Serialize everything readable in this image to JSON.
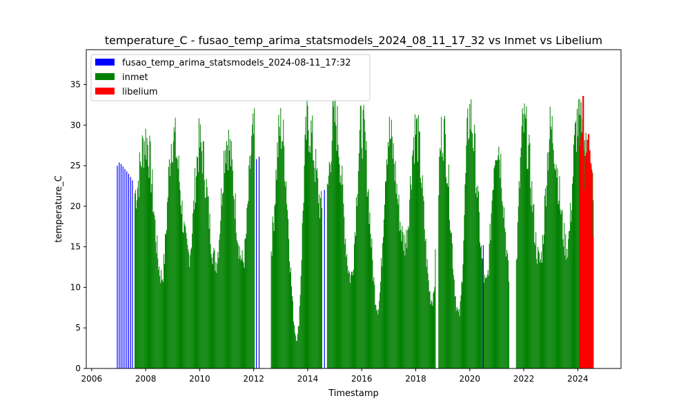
{
  "chart_data": {
    "type": "bar",
    "title": "temperature_C - fusao_temp_arima_statsmodels_2024_08_11_17_32 vs Inmet vs Libelium",
    "xlabel": "Timestamp",
    "ylabel": "temperature_C",
    "xlim": [
      2005.8,
      2025.6
    ],
    "ylim": [
      0,
      39.3
    ],
    "x_ticks": [
      2006,
      2008,
      2010,
      2012,
      2014,
      2016,
      2018,
      2020,
      2022,
      2024
    ],
    "y_ticks": [
      0,
      5,
      10,
      15,
      20,
      25,
      30,
      35
    ],
    "grid": false,
    "legend_position": "top-left",
    "series": [
      {
        "name": "fusao_temp_arima_statsmodels_2024-08-11_17:32",
        "color": "#0000ff",
        "points": [
          [
            2006.95,
            25.0
          ],
          [
            2007.02,
            25.4
          ],
          [
            2007.09,
            25.2
          ],
          [
            2007.16,
            24.9
          ],
          [
            2007.23,
            24.6
          ],
          [
            2007.3,
            24.3
          ],
          [
            2007.37,
            24.0
          ],
          [
            2007.44,
            23.6
          ],
          [
            2007.51,
            23.2
          ],
          [
            2012.1,
            25.8
          ],
          [
            2012.2,
            26.1
          ],
          [
            2014.62,
            22.0
          ],
          [
            2020.5,
            15.2
          ]
        ]
      },
      {
        "name": "inmet",
        "color": "#008000",
        "gaps": [
          [
            2012.05,
            2012.65
          ],
          [
            2014.55,
            2014.72
          ],
          [
            2018.75,
            2018.85
          ],
          [
            2021.47,
            2021.72
          ]
        ],
        "peaks": [
          [
            2008.0,
            30.1
          ],
          [
            2009.0,
            30.5
          ],
          [
            2010.0,
            29.3
          ],
          [
            2011.0,
            30.0
          ],
          [
            2012.0,
            30.4
          ],
          [
            2013.0,
            31.5
          ],
          [
            2014.0,
            32.0
          ],
          [
            2015.0,
            32.7
          ],
          [
            2016.0,
            31.6
          ],
          [
            2017.0,
            30.6
          ],
          [
            2018.0,
            31.2
          ],
          [
            2019.0,
            31.2
          ],
          [
            2020.0,
            33.2
          ],
          [
            2021.0,
            30.0
          ],
          [
            2022.0,
            31.8
          ],
          [
            2023.0,
            31.3
          ],
          [
            2024.0,
            32.3
          ]
        ],
        "troughs": [
          [
            2007.6,
            23.0
          ],
          [
            2008.6,
            12.0
          ],
          [
            2009.6,
            15.0
          ],
          [
            2010.6,
            14.0
          ],
          [
            2011.6,
            14.0
          ],
          [
            2012.6,
            15.5
          ],
          [
            2013.6,
            4.0
          ],
          [
            2014.6,
            20.0
          ],
          [
            2015.6,
            12.0
          ],
          [
            2016.6,
            8.0
          ],
          [
            2017.6,
            16.5
          ],
          [
            2018.6,
            9.0
          ],
          [
            2019.6,
            7.0
          ],
          [
            2020.6,
            11.0
          ],
          [
            2021.6,
            8.5
          ],
          [
            2022.6,
            14.0
          ],
          [
            2023.6,
            16.0
          ],
          [
            2024.6,
            24.3
          ]
        ]
      },
      {
        "name": "libelium",
        "color": "#ff0000",
        "points": [
          [
            2024.08,
            27.5
          ],
          [
            2024.12,
            28.5
          ],
          [
            2024.16,
            29.1
          ],
          [
            2024.2,
            33.6
          ],
          [
            2024.24,
            22.1
          ],
          [
            2024.28,
            26.2
          ],
          [
            2024.32,
            26.6
          ],
          [
            2024.36,
            28.2
          ],
          [
            2024.4,
            28.9
          ],
          [
            2024.44,
            26.9
          ],
          [
            2024.48,
            25.3
          ],
          [
            2024.52,
            24.2
          ],
          [
            2024.56,
            16.2
          ]
        ]
      }
    ]
  }
}
